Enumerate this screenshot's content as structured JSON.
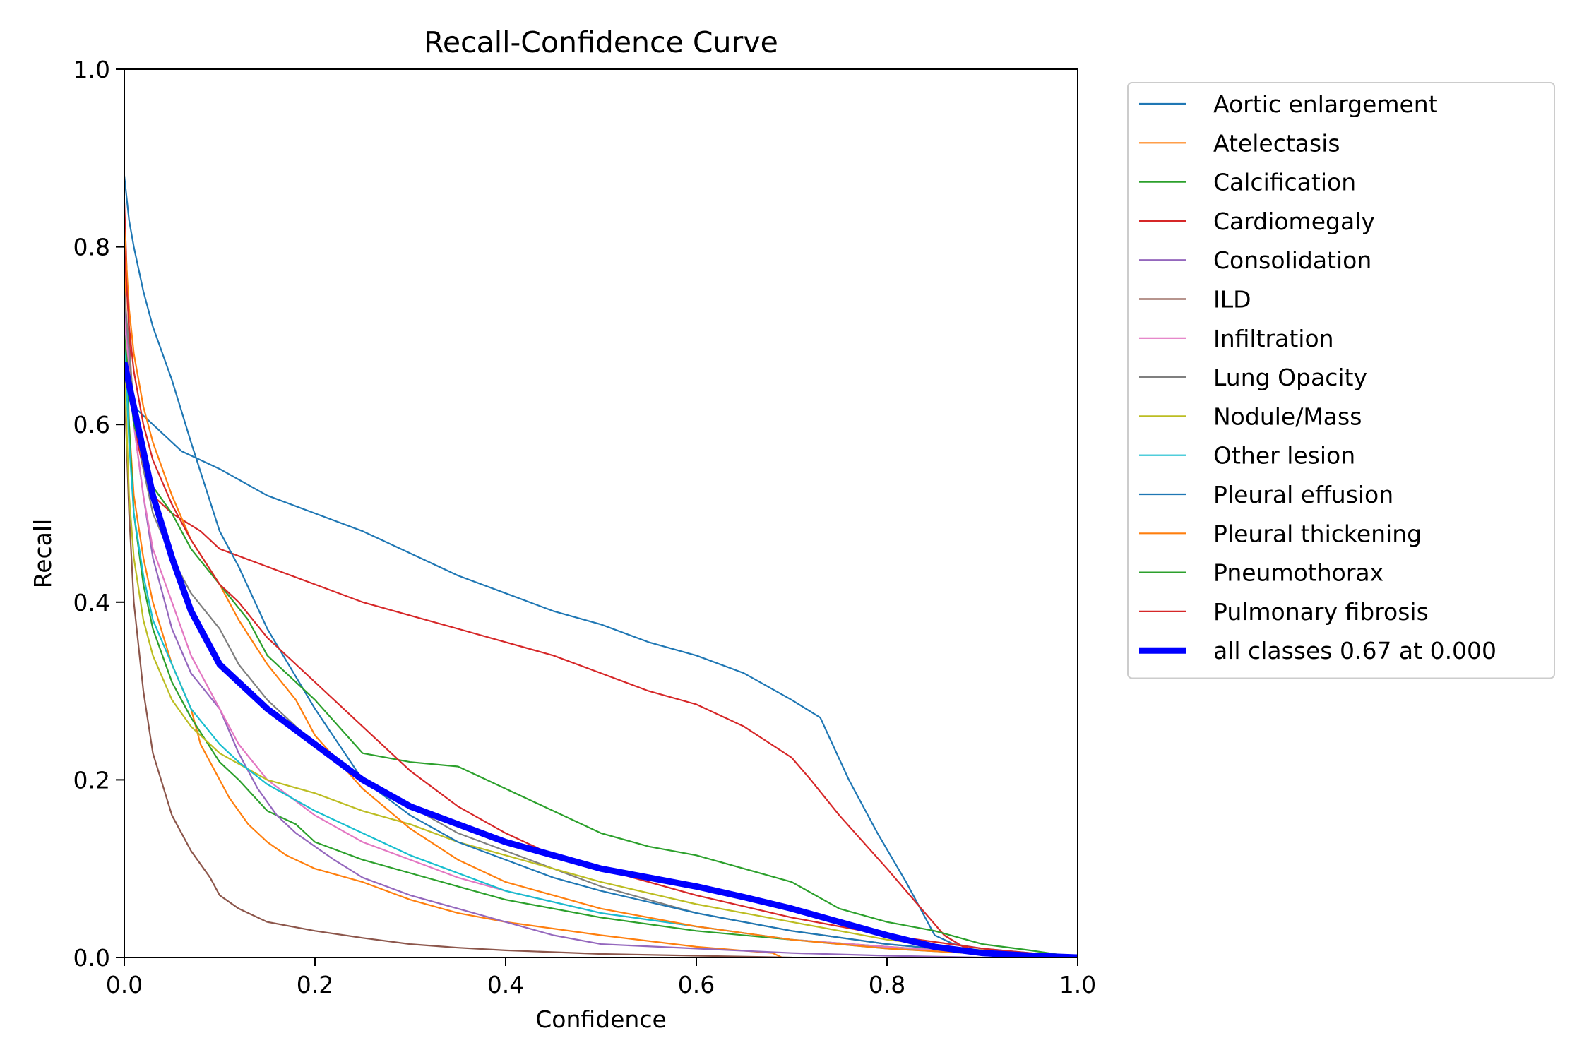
{
  "chart_data": {
    "type": "line",
    "title": "Recall-Confidence Curve",
    "xlabel": "Confidence",
    "ylabel": "Recall",
    "xlim": [
      0,
      1
    ],
    "ylim": [
      0,
      1
    ],
    "xticks": [
      "0.0",
      "0.2",
      "0.4",
      "0.6",
      "0.8",
      "1.0"
    ],
    "yticks": [
      "0.0",
      "0.2",
      "0.4",
      "0.6",
      "0.8",
      "1.0"
    ],
    "grid": false,
    "legend_position": "outside-right-top",
    "series": [
      {
        "name": "Aortic enlargement",
        "color": "#1f77b4",
        "x": [
          0,
          0.01,
          0.03,
          0.06,
          0.1,
          0.15,
          0.2,
          0.25,
          0.3,
          0.35,
          0.4,
          0.45,
          0.5,
          0.55,
          0.6,
          0.65,
          0.7,
          0.73,
          0.76,
          0.79,
          0.82,
          0.84,
          0.85,
          0.87,
          0.9,
          0.95,
          1.0
        ],
        "y": [
          0.65,
          0.62,
          0.6,
          0.57,
          0.55,
          0.52,
          0.5,
          0.48,
          0.455,
          0.43,
          0.41,
          0.39,
          0.375,
          0.355,
          0.34,
          0.32,
          0.29,
          0.27,
          0.2,
          0.14,
          0.085,
          0.045,
          0.025,
          0.015,
          0.01,
          0.005,
          0.0
        ]
      },
      {
        "name": "Atelectasis",
        "color": "#ff7f0e",
        "x": [
          0,
          0.005,
          0.01,
          0.02,
          0.03,
          0.05,
          0.07,
          0.08,
          0.09,
          0.1,
          0.11,
          0.13,
          0.15,
          0.17,
          0.2,
          0.25,
          0.3,
          0.35,
          0.4,
          0.5,
          0.6,
          0.68,
          0.69
        ],
        "y": [
          0.8,
          0.6,
          0.52,
          0.45,
          0.4,
          0.33,
          0.28,
          0.24,
          0.22,
          0.2,
          0.18,
          0.15,
          0.13,
          0.115,
          0.1,
          0.085,
          0.065,
          0.05,
          0.04,
          0.025,
          0.012,
          0.005,
          0.0
        ]
      },
      {
        "name": "Calcification",
        "color": "#2ca02c",
        "x": [
          0,
          0.005,
          0.01,
          0.02,
          0.03,
          0.05,
          0.07,
          0.1,
          0.12,
          0.15,
          0.18,
          0.2,
          0.25,
          0.3,
          0.35,
          0.4,
          0.5,
          0.6,
          0.7,
          0.8,
          0.9,
          1.0
        ],
        "y": [
          0.72,
          0.6,
          0.5,
          0.42,
          0.37,
          0.31,
          0.27,
          0.22,
          0.2,
          0.165,
          0.15,
          0.13,
          0.11,
          0.095,
          0.08,
          0.065,
          0.045,
          0.03,
          0.02,
          0.012,
          0.005,
          0.0
        ]
      },
      {
        "name": "Cardiomegaly",
        "color": "#d62728",
        "x": [
          0,
          0.005,
          0.01,
          0.02,
          0.03,
          0.05,
          0.08,
          0.1,
          0.15,
          0.2,
          0.25,
          0.3,
          0.35,
          0.4,
          0.45,
          0.5,
          0.55,
          0.6,
          0.65,
          0.7,
          0.72,
          0.75,
          0.8,
          0.84,
          0.86,
          0.88,
          0.9,
          0.95,
          1.0
        ],
        "y": [
          0.85,
          0.7,
          0.6,
          0.55,
          0.52,
          0.5,
          0.48,
          0.46,
          0.44,
          0.42,
          0.4,
          0.385,
          0.37,
          0.355,
          0.34,
          0.32,
          0.3,
          0.285,
          0.26,
          0.225,
          0.2,
          0.16,
          0.1,
          0.05,
          0.025,
          0.012,
          0.006,
          0.002,
          0.0
        ]
      },
      {
        "name": "Consolidation",
        "color": "#9467bd",
        "x": [
          0,
          0.01,
          0.02,
          0.03,
          0.05,
          0.07,
          0.1,
          0.12,
          0.14,
          0.16,
          0.18,
          0.2,
          0.22,
          0.25,
          0.3,
          0.35,
          0.4,
          0.45,
          0.5,
          0.6,
          0.7,
          0.8,
          0.9
        ],
        "y": [
          0.73,
          0.6,
          0.52,
          0.45,
          0.37,
          0.32,
          0.28,
          0.23,
          0.19,
          0.16,
          0.14,
          0.125,
          0.11,
          0.09,
          0.07,
          0.055,
          0.04,
          0.025,
          0.015,
          0.01,
          0.005,
          0.002,
          0.0
        ]
      },
      {
        "name": "ILD",
        "color": "#8c564b",
        "x": [
          0,
          0.005,
          0.01,
          0.02,
          0.03,
          0.05,
          0.07,
          0.09,
          0.1,
          0.12,
          0.15,
          0.2,
          0.25,
          0.3,
          0.35,
          0.4,
          0.5,
          0.6,
          0.7
        ],
        "y": [
          0.65,
          0.5,
          0.4,
          0.3,
          0.23,
          0.16,
          0.12,
          0.09,
          0.07,
          0.055,
          0.04,
          0.03,
          0.022,
          0.015,
          0.011,
          0.008,
          0.004,
          0.002,
          0.0
        ]
      },
      {
        "name": "Infiltration",
        "color": "#e377c2",
        "x": [
          0,
          0.01,
          0.02,
          0.03,
          0.05,
          0.07,
          0.1,
          0.12,
          0.15,
          0.2,
          0.25,
          0.3,
          0.35,
          0.4,
          0.5,
          0.6,
          0.7,
          0.8,
          0.9,
          1.0
        ],
        "y": [
          0.72,
          0.6,
          0.52,
          0.46,
          0.4,
          0.34,
          0.28,
          0.24,
          0.2,
          0.16,
          0.13,
          0.11,
          0.09,
          0.075,
          0.05,
          0.035,
          0.02,
          0.012,
          0.005,
          0.0
        ]
      },
      {
        "name": "Lung Opacity",
        "color": "#7f7f7f",
        "x": [
          0,
          0.01,
          0.02,
          0.03,
          0.05,
          0.07,
          0.1,
          0.12,
          0.15,
          0.2,
          0.25,
          0.3,
          0.35,
          0.4,
          0.5,
          0.6,
          0.7,
          0.8,
          0.9,
          1.0
        ],
        "y": [
          0.75,
          0.62,
          0.55,
          0.5,
          0.45,
          0.41,
          0.37,
          0.33,
          0.29,
          0.24,
          0.2,
          0.17,
          0.14,
          0.12,
          0.08,
          0.05,
          0.03,
          0.015,
          0.005,
          0.0
        ]
      },
      {
        "name": "Nodule/Mass",
        "color": "#bcbd22",
        "x": [
          0,
          0.005,
          0.01,
          0.02,
          0.03,
          0.05,
          0.07,
          0.1,
          0.15,
          0.2,
          0.25,
          0.3,
          0.35,
          0.4,
          0.45,
          0.5,
          0.6,
          0.7,
          0.8,
          0.9,
          1.0
        ],
        "y": [
          0.67,
          0.52,
          0.45,
          0.38,
          0.34,
          0.29,
          0.26,
          0.23,
          0.2,
          0.185,
          0.165,
          0.15,
          0.13,
          0.115,
          0.1,
          0.085,
          0.06,
          0.04,
          0.02,
          0.008,
          0.0
        ]
      },
      {
        "name": "Other lesion",
        "color": "#17becf",
        "x": [
          0,
          0.005,
          0.01,
          0.02,
          0.03,
          0.05,
          0.07,
          0.1,
          0.12,
          0.15,
          0.2,
          0.25,
          0.3,
          0.35,
          0.4,
          0.5,
          0.6,
          0.7,
          0.8,
          0.9,
          1.0
        ],
        "y": [
          0.7,
          0.58,
          0.5,
          0.43,
          0.38,
          0.33,
          0.28,
          0.24,
          0.22,
          0.195,
          0.165,
          0.14,
          0.115,
          0.095,
          0.075,
          0.05,
          0.035,
          0.02,
          0.01,
          0.004,
          0.0
        ]
      },
      {
        "name": "Pleural effusion",
        "color": "#1f77b4",
        "x": [
          0,
          0.005,
          0.01,
          0.02,
          0.03,
          0.05,
          0.07,
          0.1,
          0.12,
          0.15,
          0.2,
          0.25,
          0.3,
          0.35,
          0.4,
          0.45,
          0.5,
          0.6,
          0.7,
          0.8,
          0.9,
          1.0
        ],
        "y": [
          0.88,
          0.83,
          0.8,
          0.75,
          0.71,
          0.65,
          0.58,
          0.48,
          0.44,
          0.37,
          0.28,
          0.2,
          0.16,
          0.13,
          0.11,
          0.09,
          0.075,
          0.05,
          0.03,
          0.015,
          0.005,
          0.0
        ]
      },
      {
        "name": "Pleural thickening",
        "color": "#ff7f0e",
        "x": [
          0,
          0.005,
          0.01,
          0.02,
          0.03,
          0.05,
          0.07,
          0.1,
          0.12,
          0.15,
          0.18,
          0.2,
          0.25,
          0.3,
          0.35,
          0.4,
          0.5,
          0.6,
          0.7,
          0.8,
          0.9,
          1.0
        ],
        "y": [
          0.82,
          0.73,
          0.68,
          0.62,
          0.58,
          0.52,
          0.47,
          0.42,
          0.38,
          0.33,
          0.29,
          0.25,
          0.19,
          0.145,
          0.11,
          0.085,
          0.055,
          0.035,
          0.02,
          0.01,
          0.004,
          0.0
        ]
      },
      {
        "name": "Pneumothorax",
        "color": "#2ca02c",
        "x": [
          0,
          0.01,
          0.03,
          0.05,
          0.07,
          0.1,
          0.13,
          0.15,
          0.17,
          0.2,
          0.25,
          0.3,
          0.35,
          0.4,
          0.45,
          0.5,
          0.55,
          0.6,
          0.65,
          0.7,
          0.75,
          0.8,
          0.85,
          0.9,
          0.95,
          1.0
        ],
        "y": [
          0.7,
          0.6,
          0.53,
          0.5,
          0.46,
          0.42,
          0.38,
          0.34,
          0.32,
          0.29,
          0.23,
          0.22,
          0.215,
          0.19,
          0.165,
          0.14,
          0.125,
          0.115,
          0.1,
          0.085,
          0.055,
          0.04,
          0.03,
          0.015,
          0.008,
          0.0
        ]
      },
      {
        "name": "Pulmonary fibrosis",
        "color": "#d62728",
        "x": [
          0,
          0.005,
          0.01,
          0.02,
          0.03,
          0.05,
          0.07,
          0.1,
          0.12,
          0.15,
          0.2,
          0.25,
          0.3,
          0.35,
          0.4,
          0.45,
          0.5,
          0.6,
          0.7,
          0.8,
          0.9,
          1.0
        ],
        "y": [
          0.8,
          0.71,
          0.66,
          0.6,
          0.56,
          0.51,
          0.47,
          0.42,
          0.4,
          0.36,
          0.31,
          0.26,
          0.21,
          0.17,
          0.14,
          0.115,
          0.1,
          0.07,
          0.045,
          0.025,
          0.01,
          0.0
        ]
      },
      {
        "name": "all classes 0.67 at 0.000",
        "color": "#0000ff",
        "bold": true,
        "x": [
          0,
          0.01,
          0.02,
          0.03,
          0.05,
          0.07,
          0.1,
          0.15,
          0.2,
          0.25,
          0.3,
          0.35,
          0.4,
          0.45,
          0.5,
          0.55,
          0.6,
          0.65,
          0.7,
          0.75,
          0.8,
          0.85,
          0.9,
          0.95,
          1.0
        ],
        "y": [
          0.67,
          0.62,
          0.57,
          0.52,
          0.45,
          0.39,
          0.33,
          0.28,
          0.24,
          0.2,
          0.17,
          0.15,
          0.13,
          0.115,
          0.1,
          0.09,
          0.08,
          0.068,
          0.055,
          0.04,
          0.025,
          0.012,
          0.005,
          0.002,
          0.0
        ]
      }
    ]
  }
}
